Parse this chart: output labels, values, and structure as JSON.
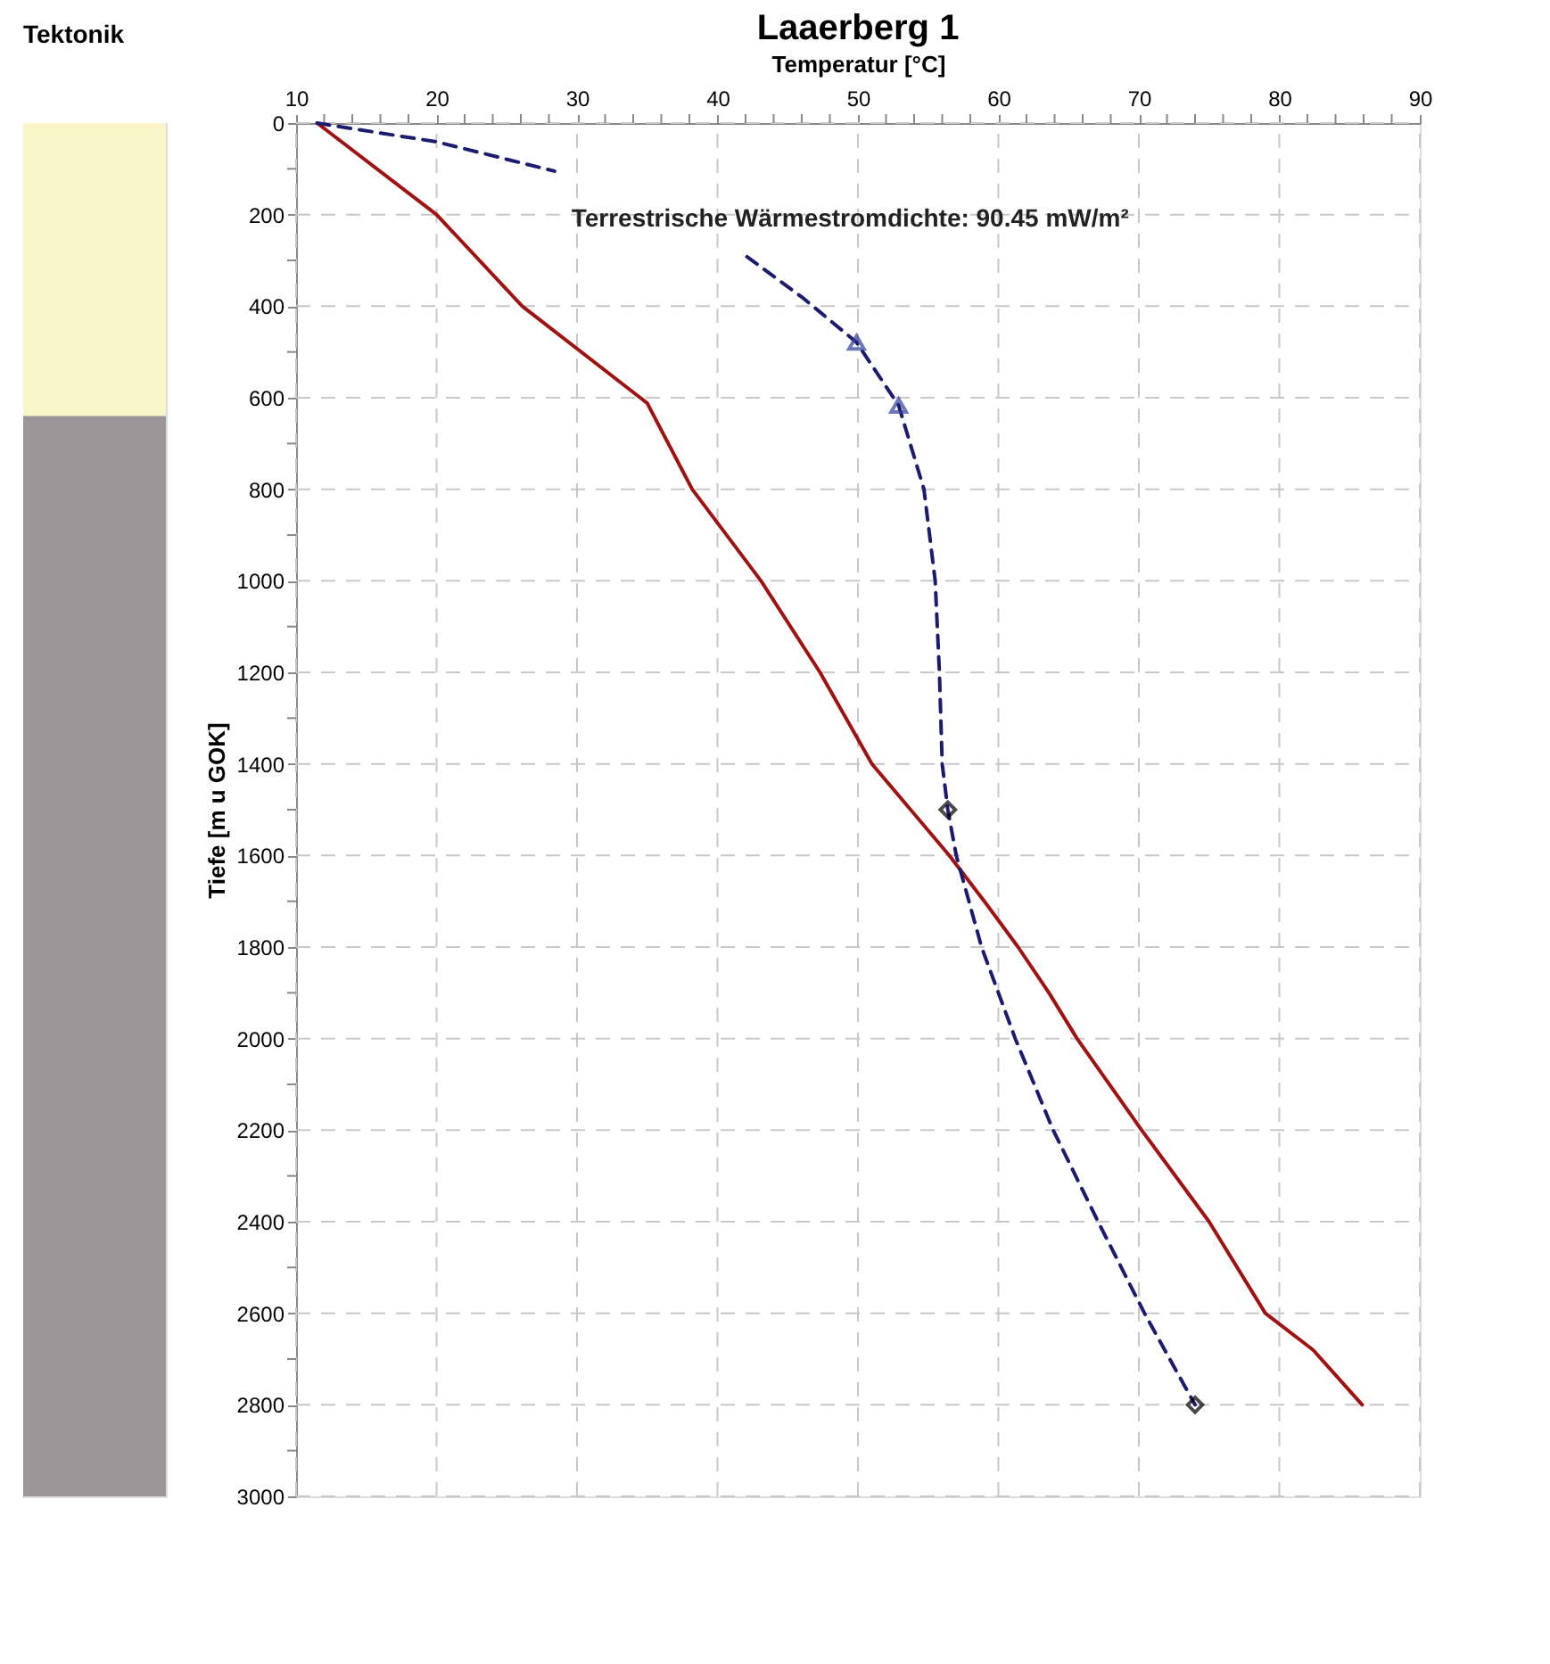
{
  "chart_data": [
    {
      "type": "bar",
      "title": "Tektonik",
      "categories": [
        null
      ],
      "stacked": true,
      "ylim": [
        3000,
        0
      ],
      "series": [
        {
          "color": "#faf5c8",
          "values": [
            640
          ]
        },
        {
          "color": "#9b9697",
          "values": [
            2360
          ]
        }
      ]
    },
    {
      "type": "line",
      "title": "Laaerberg 1",
      "xlabel": "Temperatur [°C]",
      "ylabel": "Tiefe [m u GOK]",
      "xlim": [
        10,
        90
      ],
      "xticks": [
        10,
        {
          "value": 12,
          "label": null
        },
        {
          "value": 14,
          "label": null
        },
        {
          "value": 16,
          "label": null
        },
        {
          "value": 18,
          "label": null
        },
        20,
        {
          "value": 22,
          "label": null
        },
        {
          "value": 24,
          "label": null
        },
        {
          "value": 26,
          "label": null
        },
        {
          "value": 28,
          "label": null
        },
        30,
        {
          "value": 32,
          "label": null
        },
        {
          "value": 34,
          "label": null
        },
        {
          "value": 36,
          "label": null
        },
        {
          "value": 38,
          "label": null
        },
        40,
        {
          "value": 42,
          "label": null
        },
        {
          "value": 44,
          "label": null
        },
        {
          "value": 46,
          "label": null
        },
        {
          "value": 48,
          "label": null
        },
        50,
        {
          "value": 52,
          "label": null
        },
        {
          "value": 54,
          "label": null
        },
        {
          "value": 56,
          "label": null
        },
        {
          "value": 58,
          "label": null
        },
        60,
        {
          "value": 62,
          "label": null
        },
        {
          "value": 64,
          "label": null
        },
        {
          "value": 66,
          "label": null
        },
        {
          "value": 68,
          "label": null
        },
        70,
        {
          "value": 72,
          "label": null
        },
        {
          "value": 74,
          "label": null
        },
        {
          "value": 76,
          "label": null
        },
        {
          "value": 78,
          "label": null
        },
        80,
        {
          "value": 82,
          "label": null
        },
        {
          "value": 84,
          "label": null
        },
        {
          "value": 86,
          "label": null
        },
        {
          "value": 88,
          "label": null
        },
        90
      ],
      "ylim": [
        3000,
        0
      ],
      "yticks": [
        0,
        {
          "value": 100,
          "label": null
        },
        200,
        {
          "value": 300,
          "label": null
        },
        400,
        {
          "value": 500,
          "label": null
        },
        600,
        {
          "value": 700,
          "label": null
        },
        800,
        {
          "value": 900,
          "label": null
        },
        1000,
        {
          "value": 1100,
          "label": null
        },
        1200,
        {
          "value": 1300,
          "label": null
        },
        1400,
        {
          "value": 1500,
          "label": null
        },
        1600,
        {
          "value": 1700,
          "label": null
        },
        1800,
        {
          "value": 1900,
          "label": null
        },
        2000,
        {
          "value": 2100,
          "label": null
        },
        2200,
        {
          "value": 2300,
          "label": null
        },
        2400,
        {
          "value": 2500,
          "label": null
        },
        2600,
        {
          "value": 2700,
          "label": null
        },
        2800,
        {
          "value": 2900,
          "label": null
        },
        3000
      ],
      "grid": true,
      "annotations": [
        "Terrestrische Wärmestromdichte: 90.45 mW/m²"
      ],
      "series": [
        {
          "type": "line",
          "color": "#a01212",
          "line_style": "solid",
          "x": [
            11.5,
            20,
            26.1,
            34.5,
            35,
            38.2,
            43.1,
            47.3,
            51,
            56.5,
            59,
            61.4,
            63.6,
            65.6,
            70.2,
            75,
            79,
            82.4,
            85.9
          ],
          "values": [
            0,
            200,
            400,
            600,
            612,
            800,
            1000,
            1200,
            1400,
            1600,
            1700,
            1800,
            1900,
            2000,
            2200,
            2400,
            2600,
            2680,
            2800
          ]
        },
        {
          "type": "line",
          "color": "#1c1c6e",
          "line_style": "dashed",
          "x": [
            11.5,
            20,
            28.4
          ],
          "values": [
            0,
            41,
            105
          ]
        },
        {
          "type": "line",
          "color": "#1c1c6e",
          "line_style": "dashed",
          "x": [
            42.1,
            46,
            49.9,
            52.9,
            54.7,
            55.5,
            55.8,
            56,
            56.4,
            57,
            58.8,
            61.2,
            63.9,
            67.1,
            70.4,
            74
          ],
          "values": [
            292,
            380,
            479,
            617,
            800,
            1000,
            1200,
            1400,
            1500,
            1600,
            1800,
            2000,
            2200,
            2400,
            2600,
            2800
          ]
        },
        {
          "type": "scatter",
          "color": "#2e3f9e",
          "marker": "triangle",
          "x": [
            49.9,
            52.9
          ],
          "values": [
            479,
            617
          ]
        },
        {
          "type": "scatter",
          "color": "#000000",
          "marker": "diamond",
          "x": [
            56.4,
            74
          ],
          "values": [
            1500,
            2800
          ]
        }
      ]
    }
  ]
}
